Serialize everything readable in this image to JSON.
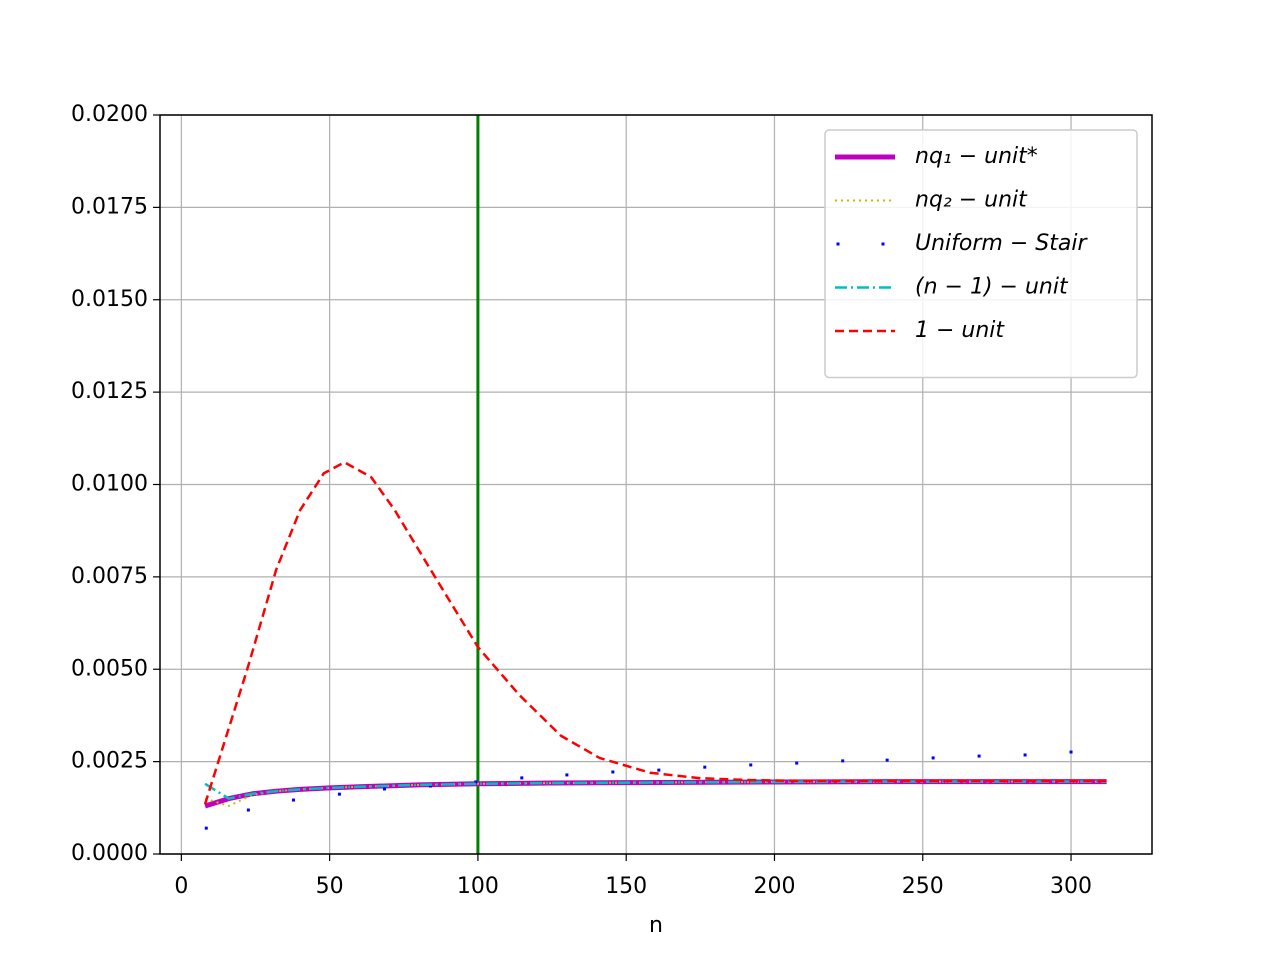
{
  "chart_data": {
    "type": "line",
    "xlabel": "n",
    "xlim": [
      -7.2,
      327.3
    ],
    "ylim": [
      0,
      0.02
    ],
    "xticks": [
      0,
      50,
      100,
      150,
      200,
      250,
      300
    ],
    "yticks": [
      {
        "value": 0,
        "label": "0.0000"
      },
      {
        "value": 0.0025,
        "label": "0.0025"
      },
      {
        "value": 0.005,
        "label": "0.0050"
      },
      {
        "value": 0.0075,
        "label": "0.0075"
      },
      {
        "value": 0.01,
        "label": "0.0100"
      },
      {
        "value": 0.0125,
        "label": "0.0125"
      },
      {
        "value": 0.015,
        "label": "0.0150"
      },
      {
        "value": 0.0175,
        "label": "0.0175"
      },
      {
        "value": 0.02,
        "label": "0.0200"
      }
    ],
    "grid": true,
    "legend_loc": "upper-right",
    "vline": {
      "x": 100,
      "color": "#008000"
    },
    "series": [
      {
        "name": "nq₁ − unit*",
        "color": "#bf00bf",
        "linewidth": 5,
        "linestyle": "solid",
        "x": [
          8,
          16,
          24,
          32,
          40,
          50,
          60,
          80,
          100,
          125,
          150,
          200,
          250,
          312
        ],
        "values": [
          0.0013,
          0.0015,
          0.00163,
          0.0017,
          0.00175,
          0.00179,
          0.00182,
          0.00187,
          0.0019,
          0.00192,
          0.00193,
          0.00195,
          0.00196,
          0.00196
        ]
      },
      {
        "name": "nq₂ − unit",
        "color": "#bfbf00",
        "linewidth": 2,
        "linestyle": "dotted",
        "x": [
          8,
          16,
          24,
          32,
          40,
          50,
          60,
          80,
          100,
          125,
          150,
          200,
          250,
          312
        ],
        "values": [
          0.0015,
          0.0013,
          0.0016,
          0.0017,
          0.00175,
          0.00179,
          0.00182,
          0.00187,
          0.0019,
          0.00192,
          0.00193,
          0.00195,
          0.00196,
          0.00196
        ]
      },
      {
        "name": "Uniform − Stair",
        "color": "#0000ff",
        "linewidth": 0,
        "linestyle": "none",
        "marker": "pixel",
        "x": [
          8.4,
          22.6,
          37.8,
          53.3,
          68.5,
          84,
          99.3,
          114.8,
          130,
          145.5,
          161,
          176.5,
          192,
          207.5,
          223,
          238,
          253.5,
          269,
          284.5,
          300
        ],
        "values": [
          0.0007,
          0.00119,
          0.00146,
          0.00162,
          0.00176,
          0.00184,
          0.00195,
          0.00206,
          0.00214,
          0.00222,
          0.00227,
          0.00235,
          0.00241,
          0.00246,
          0.00252,
          0.00254,
          0.0026,
          0.00265,
          0.00268,
          0.00276
        ]
      },
      {
        "name": "(n − 1) − unit",
        "color": "#00bfbf",
        "linewidth": 2.5,
        "linestyle": "dashdot",
        "x": [
          8,
          16,
          24,
          32,
          40,
          50,
          60,
          80,
          100,
          125,
          150,
          200,
          250,
          312
        ],
        "values": [
          0.0019,
          0.0015,
          0.00163,
          0.0017,
          0.00175,
          0.00179,
          0.00182,
          0.00187,
          0.0019,
          0.00192,
          0.00193,
          0.00195,
          0.00196,
          0.00196
        ]
      },
      {
        "name": "1 − unit",
        "color": "#ff0000",
        "linewidth": 2.5,
        "linestyle": "dashed",
        "x": [
          8,
          22.6,
          32,
          40,
          48,
          55,
          64,
          72,
          84,
          100,
          114,
          128,
          141,
          158,
          175,
          192,
          210,
          250,
          312
        ],
        "values": [
          0.00135,
          0.0051,
          0.0077,
          0.0093,
          0.0103,
          0.0106,
          0.0102,
          0.0093,
          0.0077,
          0.0056,
          0.0043,
          0.0032,
          0.0026,
          0.0022,
          0.00205,
          0.002,
          0.00198,
          0.00198,
          0.00198
        ]
      }
    ]
  }
}
